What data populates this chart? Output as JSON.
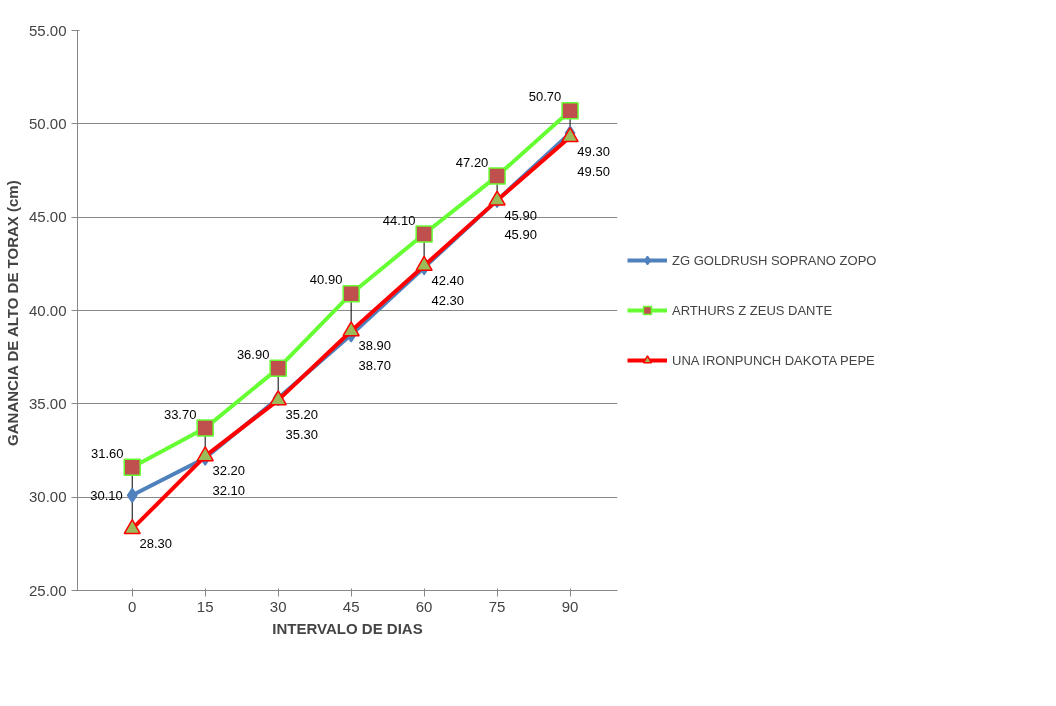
{
  "chart_data": {
    "type": "line",
    "xlabel": "INTERVALO DE DIAS",
    "ylabel": "GANANCIA  DE ALTO DE TORAX (cm)",
    "categories": [
      "0",
      "15",
      "30",
      "45",
      "60",
      "75",
      "90"
    ],
    "ylim": [
      25,
      55
    ],
    "yticks": [
      {
        "value": 25,
        "label": "25.00"
      },
      {
        "value": 30,
        "label": "30.00"
      },
      {
        "value": 35,
        "label": "35.00"
      },
      {
        "value": 40,
        "label": "40.00"
      },
      {
        "value": 45,
        "label": "45.00"
      },
      {
        "value": 50,
        "label": "50.00"
      },
      {
        "value": 55,
        "label": "55.00"
      }
    ],
    "grid": "y",
    "legend": "right",
    "series": [
      {
        "name": "ZG GOLDRUSH SOPRANO ZOPO",
        "color": "#4f81bd",
        "marker": "diamond",
        "values": [
          30.1,
          32.1,
          35.3,
          38.7,
          42.3,
          45.9,
          49.5
        ],
        "value_labels": [
          "30.10",
          "32.10",
          "35.30",
          "38.70",
          "42.30",
          "45.90",
          "49.50"
        ]
      },
      {
        "name": "ARTHURS Z ZEUS DANTE",
        "color": "#66ff33",
        "marker": "square",
        "values": [
          31.6,
          33.7,
          36.9,
          40.9,
          44.1,
          47.2,
          50.7
        ],
        "value_labels": [
          "31.60",
          "33.70",
          "36.90",
          "40.90",
          "44.10",
          "47.20",
          "50.70"
        ]
      },
      {
        "name": "UNA IRONPUNCH DAKOTA PEPE",
        "color": "#ff0000",
        "marker": "triangle",
        "values": [
          28.3,
          32.2,
          35.2,
          38.9,
          42.4,
          45.9,
          49.3
        ],
        "value_labels": [
          "28.30",
          "32.20",
          "35.20",
          "38.90",
          "42.40",
          "45.90",
          "49.30"
        ]
      }
    ]
  }
}
